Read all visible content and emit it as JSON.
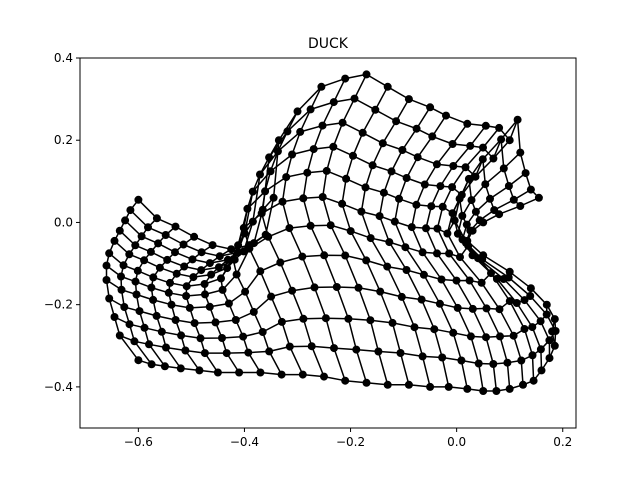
{
  "chart_data": {
    "type": "line",
    "title": "DUCK",
    "xlabel": "",
    "ylabel": "",
    "xlim": [
      -0.71,
      0.225
    ],
    "ylim": [
      -0.5,
      0.4
    ],
    "grid": false,
    "xticks": [
      -0.6,
      -0.4,
      -0.2,
      0.0,
      0.2
    ],
    "xtick_labels": [
      "−0.6",
      "−0.4",
      "−0.2",
      "0.0",
      "0.2"
    ],
    "yticks": [
      -0.4,
      -0.2,
      0.0,
      0.2,
      0.4
    ],
    "ytick_labels": [
      "−0.4",
      "−0.2",
      "0.0",
      "0.2",
      "0.4"
    ],
    "series": [
      {
        "color": "#000000",
        "marker": "circle",
        "grid_rows": 12,
        "grid_cols": 27,
        "top_edge": [
          [
            -0.6,
            0.055
          ],
          [
            -0.565,
            0.01
          ],
          [
            -0.53,
            -0.01
          ],
          [
            -0.495,
            -0.035
          ],
          [
            -0.46,
            -0.055
          ],
          [
            -0.425,
            -0.065
          ],
          [
            -0.39,
            -0.055
          ],
          [
            -0.36,
            -0.03
          ],
          [
            -0.345,
            0.06
          ],
          [
            -0.335,
            0.2
          ],
          [
            -0.3,
            0.27
          ],
          [
            -0.255,
            0.33
          ],
          [
            -0.21,
            0.35
          ],
          [
            -0.17,
            0.36
          ],
          [
            -0.13,
            0.33
          ],
          [
            -0.09,
            0.3
          ],
          [
            -0.05,
            0.28
          ],
          [
            -0.02,
            0.26
          ],
          [
            0.02,
            0.24
          ],
          [
            0.055,
            0.235
          ],
          [
            0.08,
            0.23
          ],
          [
            0.1,
            0.2
          ],
          [
            0.115,
            0.25
          ],
          [
            0.12,
            0.17
          ],
          [
            0.13,
            0.12
          ],
          [
            0.14,
            0.08
          ],
          [
            0.155,
            0.06
          ]
        ],
        "bottom_edge": [
          [
            -0.6,
            -0.335
          ],
          [
            -0.575,
            -0.345
          ],
          [
            -0.55,
            -0.35
          ],
          [
            -0.52,
            -0.355
          ],
          [
            -0.485,
            -0.36
          ],
          [
            -0.45,
            -0.365
          ],
          [
            -0.41,
            -0.365
          ],
          [
            -0.37,
            -0.365
          ],
          [
            -0.33,
            -0.37
          ],
          [
            -0.29,
            -0.37
          ],
          [
            -0.25,
            -0.375
          ],
          [
            -0.21,
            -0.385
          ],
          [
            -0.17,
            -0.39
          ],
          [
            -0.13,
            -0.395
          ],
          [
            -0.09,
            -0.395
          ],
          [
            -0.05,
            -0.4
          ],
          [
            -0.015,
            -0.4
          ],
          [
            0.02,
            -0.405
          ],
          [
            0.05,
            -0.41
          ],
          [
            0.075,
            -0.41
          ],
          [
            0.1,
            -0.405
          ],
          [
            0.125,
            -0.395
          ],
          [
            0.145,
            -0.385
          ],
          [
            0.16,
            -0.36
          ],
          [
            0.175,
            -0.33
          ],
          [
            0.185,
            -0.3
          ],
          [
            0.18,
            -0.265
          ]
        ],
        "left_edge": [
          [
            -0.6,
            0.055
          ],
          [
            -0.615,
            0.03
          ],
          [
            -0.625,
            0.005
          ],
          [
            -0.635,
            -0.02
          ],
          [
            -0.645,
            -0.045
          ],
          [
            -0.655,
            -0.075
          ],
          [
            -0.66,
            -0.105
          ],
          [
            -0.66,
            -0.14
          ],
          [
            -0.655,
            -0.185
          ],
          [
            -0.645,
            -0.23
          ],
          [
            -0.635,
            -0.275
          ],
          [
            -0.6,
            -0.335
          ]
        ],
        "right_edge": [
          [
            0.155,
            0.06
          ],
          [
            0.12,
            0.04
          ],
          [
            0.08,
            0.02
          ],
          [
            0.05,
            0.0
          ],
          [
            0.03,
            -0.02
          ],
          [
            0.02,
            -0.045
          ],
          [
            0.05,
            -0.08
          ],
          [
            0.1,
            -0.12
          ],
          [
            0.14,
            -0.16
          ],
          [
            0.17,
            -0.2
          ],
          [
            0.185,
            -0.235
          ],
          [
            0.18,
            -0.265
          ]
        ]
      }
    ]
  }
}
